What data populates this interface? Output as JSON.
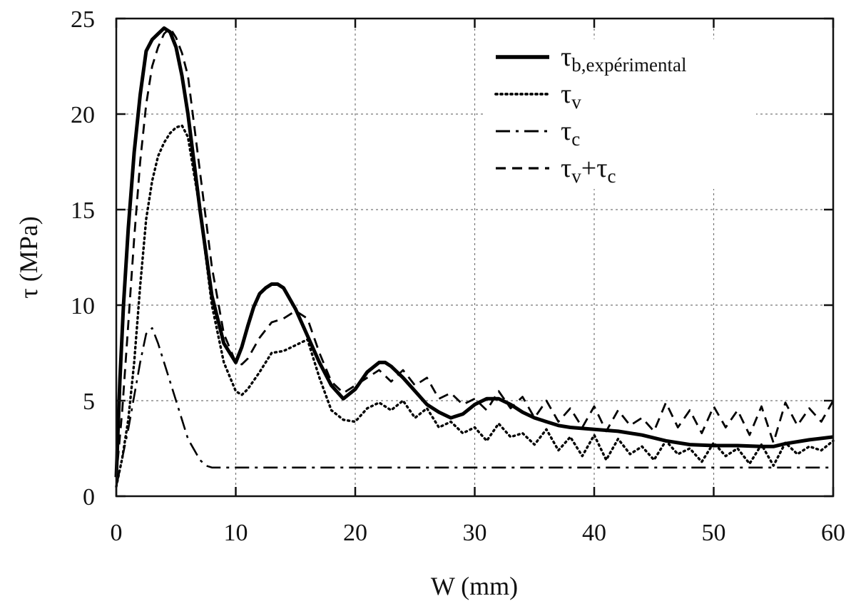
{
  "chart_data": {
    "type": "line",
    "title": "",
    "xlabel": "W (mm)",
    "ylabel": "τ (MPa)",
    "xlim": [
      0,
      60
    ],
    "ylim": [
      0,
      25
    ],
    "xticks": [
      0,
      10,
      20,
      30,
      40,
      50,
      60
    ],
    "yticks": [
      0,
      5,
      10,
      15,
      20,
      25
    ],
    "grid": true,
    "legend_position": "top-right",
    "series": [
      {
        "name": "τb,expérimental",
        "legend_main": "τ",
        "legend_sub": "b,expérimental",
        "style": "solid",
        "color": "#000000",
        "x": [
          0,
          0.3,
          0.6,
          1,
          1.5,
          2,
          2.5,
          3,
          3.5,
          4,
          4.5,
          5,
          5.5,
          6,
          7,
          8,
          9,
          10,
          10.5,
          11,
          11.5,
          12,
          12.5,
          13,
          13.5,
          14,
          15,
          16,
          17,
          18,
          19,
          20,
          21,
          22,
          22.5,
          23,
          24,
          25,
          26,
          27,
          28,
          29,
          30,
          31,
          32,
          33,
          34,
          35,
          36,
          37,
          38,
          40,
          42,
          44,
          46,
          48,
          50,
          52,
          54,
          55,
          56,
          58,
          60
        ],
        "y": [
          1,
          6,
          10,
          14,
          18,
          21,
          23.3,
          23.9,
          24.2,
          24.5,
          24.3,
          23.5,
          22,
          20,
          15,
          10.5,
          8,
          7,
          7.8,
          8.9,
          9.9,
          10.6,
          10.9,
          11.1,
          11.1,
          10.9,
          9.8,
          8.4,
          7,
          5.8,
          5.1,
          5.6,
          6.5,
          7,
          7,
          6.8,
          6.2,
          5.5,
          4.8,
          4.4,
          4.1,
          4.3,
          4.8,
          5.1,
          5.1,
          4.8,
          4.4,
          4.1,
          3.9,
          3.7,
          3.6,
          3.5,
          3.4,
          3.2,
          2.9,
          2.7,
          2.65,
          2.65,
          2.6,
          2.6,
          2.75,
          2.95,
          3.1
        ]
      },
      {
        "name": "τv",
        "legend_main": "τ",
        "legend_sub": "v",
        "style": "dotted",
        "color": "#000000",
        "x": [
          0,
          0.5,
          1,
          1.5,
          2,
          2.5,
          3,
          3.5,
          4,
          4.5,
          5,
          5.5,
          6,
          7,
          8,
          9,
          10,
          10.5,
          11,
          12,
          13,
          14,
          15,
          16,
          17,
          18,
          19,
          20,
          21,
          22,
          23,
          24,
          25,
          26,
          27,
          28,
          29,
          30,
          31,
          32,
          33,
          34,
          35,
          36,
          37,
          38,
          39,
          40,
          41,
          42,
          43,
          44,
          45,
          46,
          47,
          48,
          49,
          50,
          51,
          52,
          53,
          54,
          55,
          56,
          57,
          58,
          59,
          60
        ],
        "y": [
          0.5,
          2,
          4,
          7,
          11,
          14.5,
          16.5,
          17.8,
          18.5,
          19,
          19.3,
          19.4,
          18.8,
          15,
          10,
          7,
          5.5,
          5.3,
          5.6,
          6.5,
          7.5,
          7.6,
          7.9,
          8.2,
          6.2,
          4.5,
          4,
          3.9,
          4.6,
          4.9,
          4.5,
          5,
          4.1,
          4.6,
          3.6,
          3.9,
          3.3,
          3.6,
          2.9,
          3.8,
          3.1,
          3.3,
          2.7,
          3.5,
          2.4,
          3.1,
          2.1,
          3.2,
          1.9,
          3,
          2.2,
          2.6,
          1.9,
          2.9,
          2.2,
          2.5,
          1.8,
          2.8,
          2.1,
          2.5,
          1.7,
          2.7,
          1.6,
          2.8,
          2.2,
          2.6,
          2.4,
          2.9
        ]
      },
      {
        "name": "τc",
        "legend_main": "τ",
        "legend_sub": "c",
        "style": "dashdot",
        "color": "#000000",
        "x": [
          0,
          1,
          2,
          2.5,
          3,
          3.5,
          4,
          5,
          6,
          7,
          7.5,
          8,
          9,
          10,
          20,
          30,
          40,
          50,
          60
        ],
        "y": [
          0.5,
          3.5,
          7,
          8.5,
          8.8,
          8,
          7,
          5,
          3,
          1.9,
          1.6,
          1.5,
          1.5,
          1.5,
          1.5,
          1.5,
          1.5,
          1.5,
          1.5
        ]
      },
      {
        "name": "τv+τc",
        "legend_main": "τ",
        "legend_sub": "v",
        "legend_plus": "+",
        "legend_main2": "τ",
        "legend_sub2": "c",
        "style": "dashed",
        "color": "#000000",
        "x": [
          0,
          0.5,
          1,
          1.5,
          2,
          2.5,
          3,
          3.5,
          4,
          4.5,
          5,
          5.5,
          6,
          7,
          8,
          9,
          10,
          10.5,
          11,
          12,
          13,
          14,
          15,
          16,
          17,
          18,
          19,
          20,
          21,
          22,
          23,
          24,
          25,
          26,
          27,
          28,
          29,
          30,
          31,
          32,
          33,
          34,
          35,
          36,
          37,
          38,
          39,
          40,
          41,
          42,
          43,
          44,
          45,
          46,
          47,
          48,
          49,
          50,
          51,
          52,
          53,
          54,
          55,
          56,
          57,
          58,
          59,
          60
        ],
        "y": [
          1,
          4.5,
          9,
          13.5,
          17.5,
          20.5,
          22.5,
          23.5,
          24.2,
          24.5,
          24,
          23.2,
          22,
          17,
          12,
          8.5,
          7,
          6.9,
          7.2,
          8.3,
          9.1,
          9.3,
          9.7,
          9.3,
          7.5,
          6,
          5.4,
          5.8,
          6.2,
          6.6,
          6,
          6.6,
          5.8,
          6.2,
          5.1,
          5.4,
          4.8,
          5.1,
          4.5,
          5.5,
          4.6,
          5.2,
          4.1,
          5,
          3.9,
          4.6,
          3.6,
          4.7,
          3.4,
          4.5,
          3.7,
          4.1,
          3.4,
          4.9,
          3.6,
          4.5,
          3.3,
          4.7,
          3.6,
          4.5,
          3.2,
          4.7,
          2.8,
          4.9,
          3.7,
          4.6,
          3.9,
          5
        ]
      }
    ]
  }
}
